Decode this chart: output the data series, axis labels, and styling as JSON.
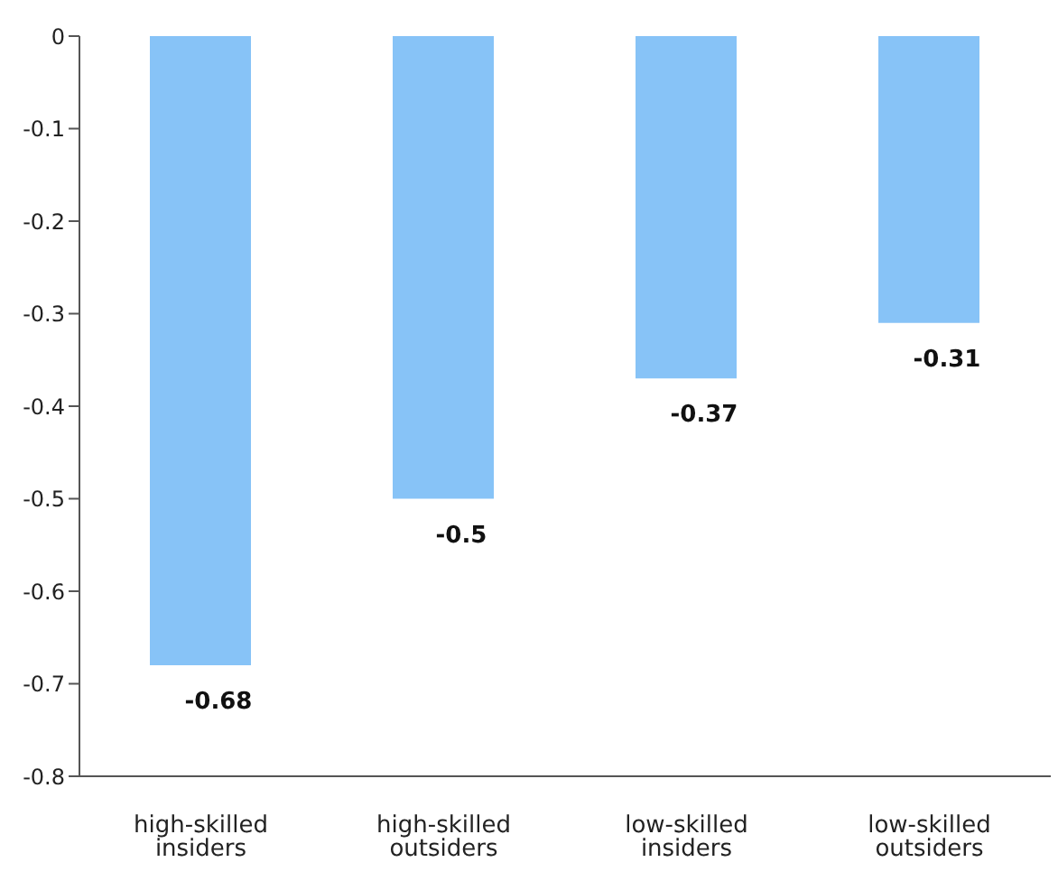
{
  "chart_data": {
    "type": "bar",
    "categories": [
      "high-skilled insiders",
      "high-skilled outsiders",
      "low-skilled insiders",
      "low-skilled outsiders"
    ],
    "values": [
      -0.68,
      -0.5,
      -0.37,
      -0.31
    ],
    "color": "#87c3f7",
    "data_labels": true,
    "ylim": [
      -0.8,
      0
    ],
    "yticks": [
      -0.8,
      -0.7,
      -0.6,
      -0.5,
      -0.4,
      -0.3,
      -0.2,
      -0.1,
      0
    ],
    "grid": false,
    "legend": false
  }
}
